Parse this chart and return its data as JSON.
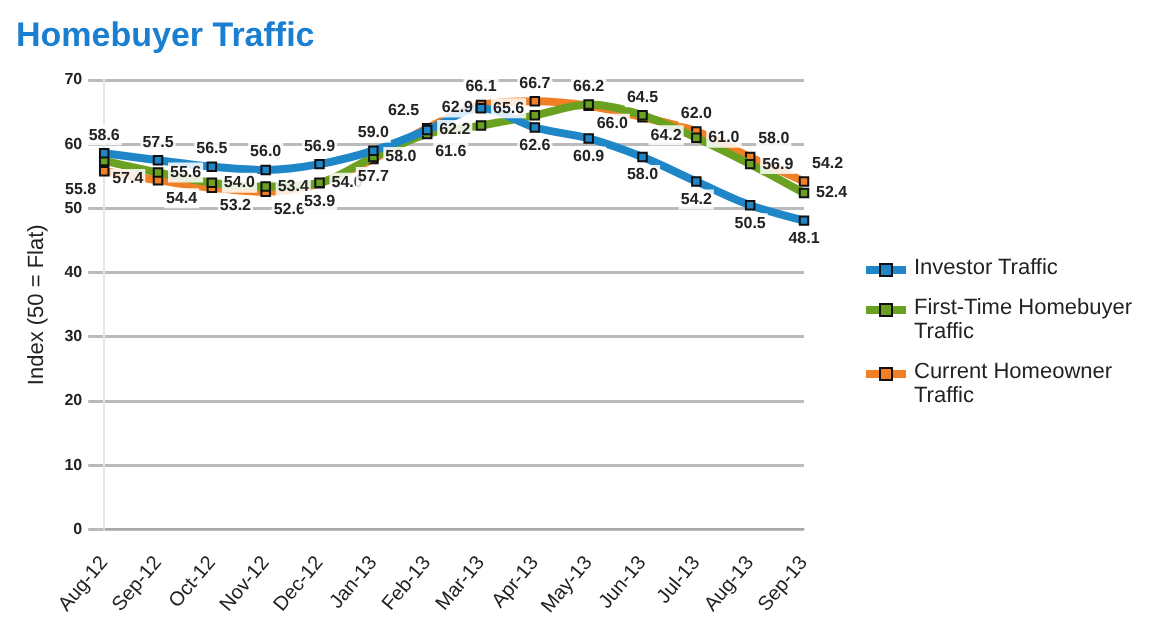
{
  "chart_data": {
    "type": "line",
    "title": "Homebuyer Traffic",
    "ylabel": "Index (50 = Flat)",
    "categories": [
      "Aug-12",
      "Sep-12",
      "Oct-12",
      "Nov-12",
      "Dec-12",
      "Jan-13",
      "Feb-13",
      "Mar-13",
      "Apr-13",
      "May-13",
      "Jun-13",
      "Jul-13",
      "Aug-13",
      "Sep-13"
    ],
    "ylim": [
      0,
      70
    ],
    "yticks": [
      0,
      10,
      20,
      30,
      40,
      50,
      60,
      70
    ],
    "grid": "y",
    "legend": "right",
    "marker": "square",
    "line_style": "solid",
    "series": [
      {
        "name": "Investor Traffic",
        "color": "#1f86c8",
        "values": [
          58.6,
          57.5,
          56.5,
          56.0,
          56.9,
          59.0,
          62.2,
          65.6,
          62.6,
          60.9,
          58.0,
          54.2,
          50.5,
          48.1
        ],
        "value_labels": [
          "58.6",
          "57.5",
          "56.5",
          "56.0",
          "56.9",
          "59.0",
          "62.2",
          "65.6",
          "62.6",
          "60.9",
          "58.0",
          "54.2",
          "50.5",
          "48.1"
        ]
      },
      {
        "name": "First-Time Homebuyer Traffic",
        "color": "#6aa121",
        "values": [
          57.4,
          55.6,
          54.0,
          53.4,
          54.0,
          58.0,
          61.6,
          62.9,
          64.5,
          66.2,
          64.5,
          61.0,
          56.9,
          52.4
        ],
        "value_labels": [
          "57.4",
          "55.6",
          "54.0",
          "53.4",
          "54.0",
          "58.0",
          "61.6",
          "62.9",
          null,
          "66.2",
          "64.5",
          "61.0",
          "56.9",
          "52.4"
        ]
      },
      {
        "name": "Current Homeowner Traffic",
        "color": "#f07f26",
        "values": [
          55.8,
          54.4,
          53.2,
          52.6,
          53.9,
          57.7,
          62.5,
          66.1,
          66.7,
          66.0,
          64.2,
          62.0,
          58.0,
          54.2
        ],
        "value_labels": [
          "55.8",
          "54.4",
          "53.2",
          "52.6",
          "53.9",
          "57.7",
          "62.5",
          "66.1",
          "66.7",
          "66.0",
          "64.2",
          "62.0",
          "58.0",
          "54.2"
        ]
      }
    ]
  }
}
